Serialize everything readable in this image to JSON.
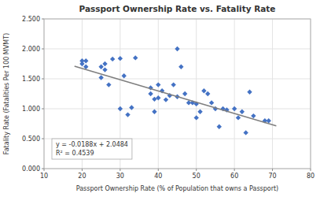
{
  "chart_data": {
    "type": "scatter",
    "title": "Passport Ownership Rate vs. Fatality Rate",
    "x_label": "Passport Ownership Rate (% of Population that owns a Passport)",
    "y_label": "Fatality Rate (Fatalities Per 100 MVMT)",
    "xlim": [
      10,
      80
    ],
    "ylim": [
      0.0,
      2.5
    ],
    "xticks": [
      10,
      20,
      30,
      40,
      50,
      60,
      70,
      80
    ],
    "yticks": [
      {
        "value": 0.0,
        "label": "0.000"
      },
      {
        "value": 0.5,
        "label": "0.500"
      },
      {
        "value": 1.0,
        "label": "1.000"
      },
      {
        "value": 1.5,
        "label": "1.500"
      },
      {
        "value": 2.0,
        "label": "2.000"
      },
      {
        "value": 2.5,
        "label": "2.500"
      }
    ],
    "grid": true,
    "series": [
      {
        "type": "scatter",
        "color": "#4472C4",
        "marker": "diamond",
        "x": [
          20,
          20,
          21,
          21,
          25,
          25,
          26,
          26,
          27,
          28,
          30,
          30,
          31,
          32,
          33,
          34,
          38,
          38,
          39,
          39,
          40,
          40,
          41,
          42,
          43,
          44,
          45,
          45,
          46,
          47,
          48,
          49,
          50,
          50,
          51,
          52,
          53,
          54,
          55,
          56,
          57,
          58,
          60,
          61,
          62,
          63,
          64,
          65,
          68,
          69
        ],
        "values": [
          1.75,
          1.8,
          1.7,
          1.8,
          1.52,
          1.7,
          1.65,
          1.75,
          1.4,
          1.83,
          1.84,
          1.0,
          1.55,
          0.9,
          1.02,
          1.85,
          1.35,
          1.25,
          1.16,
          0.95,
          1.4,
          1.18,
          1.3,
          1.15,
          1.22,
          1.4,
          2.0,
          1.2,
          1.7,
          1.25,
          1.1,
          1.1,
          1.08,
          0.85,
          0.95,
          1.3,
          1.25,
          1.1,
          1.0,
          0.7,
          1.0,
          0.98,
          1.0,
          0.85,
          0.95,
          0.6,
          1.28,
          0.88,
          0.8,
          0.8
        ]
      },
      {
        "type": "line",
        "color": "#7f7f7f",
        "line_style": "solid",
        "x": [
          18,
          71
        ],
        "values": [
          1.71,
          0.7136
        ]
      }
    ],
    "annotations": [
      "y = -0.0188x + 2.0484",
      "R² = 0.4539"
    ]
  }
}
